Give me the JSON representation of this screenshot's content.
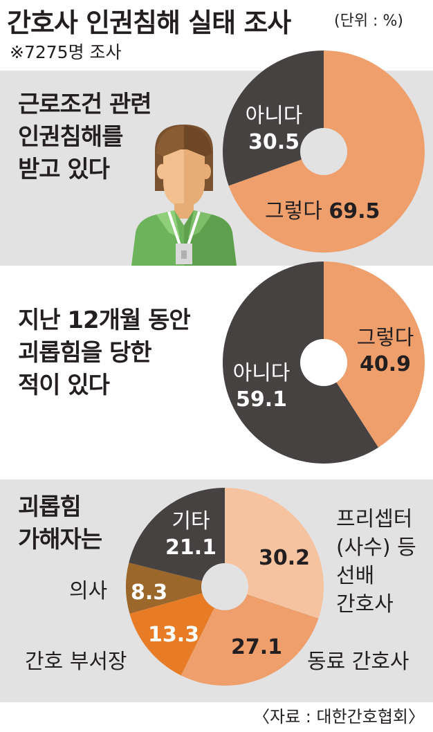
{
  "header": {
    "title": "간호사 인권침해 실태 조사",
    "unit": "(단위 : %)",
    "sample": "※7275명 조사"
  },
  "source": "〈자료 : 대한간호협회〉",
  "colors": {
    "salmon": "#ee9f6c",
    "dark": "#464242",
    "peach": "#f6c3a0",
    "orange": "#e87b25",
    "brown": "#9c672a",
    "panel_bg": "#e2e2e2",
    "hole": "#e2e2e2"
  },
  "illustration": {
    "name": "nurse-illustration"
  },
  "chart_data": [
    {
      "type": "pie",
      "question": [
        "근로조건 관련",
        "인권침해를",
        "받고 있다"
      ],
      "slices": [
        {
          "label": "그렇다",
          "value": 69.5,
          "color": "#ee9f6c"
        },
        {
          "label": "아니다",
          "value": 30.5,
          "color": "#464242"
        }
      ]
    },
    {
      "type": "pie",
      "question": [
        "지난 12개월 동안",
        "괴롭힘을 당한",
        "적이 있다"
      ],
      "slices": [
        {
          "label": "그렇다",
          "value": 40.9,
          "color": "#ee9f6c"
        },
        {
          "label": "아니다",
          "value": 59.1,
          "color": "#464242"
        }
      ]
    },
    {
      "type": "pie",
      "question": [
        "괴롭힘",
        "가해자는"
      ],
      "slices": [
        {
          "label": "프리셉터 (사수) 등 선배 간호사",
          "label_lines": [
            "프리셉터",
            "(사수) 등",
            "선배",
            "간호사"
          ],
          "value": 30.2,
          "color": "#f6c3a0"
        },
        {
          "label": "동료 간호사",
          "value": 27.1,
          "color": "#ee9f6c"
        },
        {
          "label": "간호 부서장",
          "value": 13.3,
          "color": "#e87b25"
        },
        {
          "label": "의사",
          "value": 8.3,
          "color": "#9c672a"
        },
        {
          "label": "기타",
          "value": 21.1,
          "color": "#464242"
        }
      ]
    }
  ]
}
